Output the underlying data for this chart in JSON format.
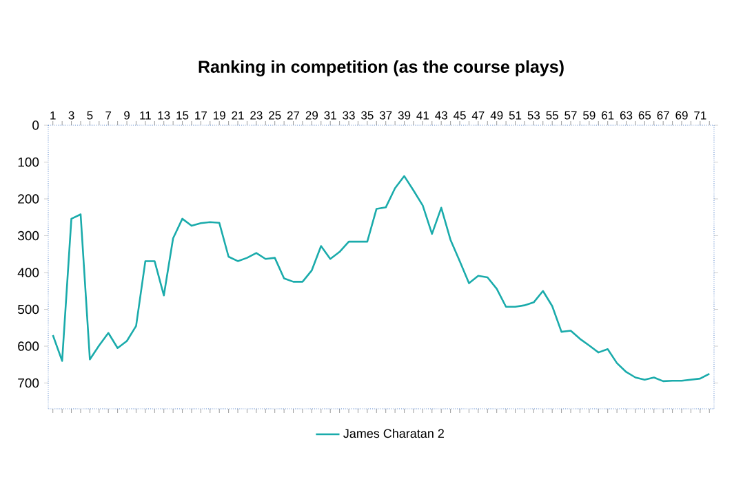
{
  "chart_data": {
    "type": "line",
    "title": "Ranking in competition (as the course plays)",
    "categories": [
      "1",
      null,
      "3",
      null,
      "5",
      null,
      "7",
      null,
      "9",
      null,
      "11",
      null,
      "13",
      null,
      "15",
      null,
      "17",
      null,
      "19",
      null,
      "21",
      null,
      "23",
      null,
      "25",
      null,
      "27",
      null,
      "29",
      null,
      "31",
      null,
      "33",
      null,
      "35",
      null,
      "37",
      null,
      "39",
      null,
      "41",
      null,
      "43",
      null,
      "45",
      null,
      "47",
      null,
      "49",
      null,
      "51",
      null,
      "53",
      null,
      "55",
      null,
      "57",
      null,
      "59",
      null,
      "61",
      null,
      "63",
      null,
      "65",
      null,
      "67",
      null,
      "69",
      null,
      "71",
      null
    ],
    "series": [
      {
        "name": "James Charatan 2",
        "color": "#1aabab",
        "values": [
          570,
          640,
          254,
          242,
          636,
          598,
          564,
          605,
          586,
          545,
          369,
          369,
          462,
          307,
          254,
          273,
          266,
          263,
          265,
          357,
          369,
          360,
          347,
          363,
          360,
          416,
          425,
          425,
          394,
          328,
          363,
          344,
          316,
          316,
          316,
          227,
          223,
          171,
          138,
          177,
          218,
          295,
          224,
          311,
          369,
          429,
          409,
          413,
          444,
          493,
          493,
          489,
          481,
          450,
          491,
          561,
          558,
          580,
          598,
          617,
          608,
          646,
          670,
          685,
          691,
          685,
          695,
          694,
          694,
          691,
          688,
          675
        ]
      }
    ],
    "ylim": [
      770,
      0
    ],
    "yticks": [
      0,
      100,
      200,
      300,
      400,
      500,
      600,
      700
    ],
    "legend": "bottom",
    "grid": false,
    "marker": "none",
    "line_style": "solid"
  }
}
